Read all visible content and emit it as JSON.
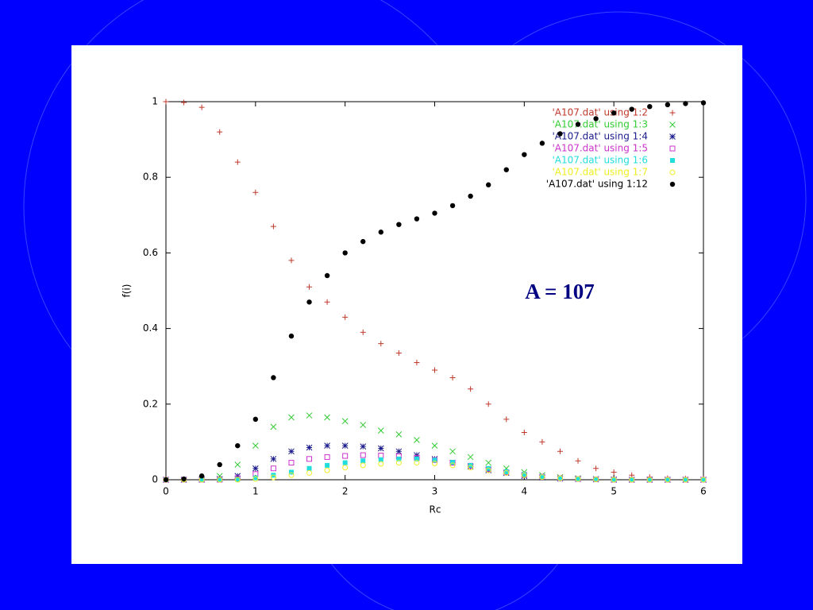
{
  "chart_data": {
    "type": "scatter",
    "annotation": "A = 107",
    "x_label": "Rc",
    "y_label": "f(i)",
    "xlim": [
      0,
      6
    ],
    "ylim": [
      0,
      1
    ],
    "xticks": [
      0,
      1,
      2,
      3,
      4,
      5,
      6
    ],
    "yticks": [
      0,
      0.2,
      0.4,
      0.6,
      0.8,
      1
    ],
    "legend": "top-right",
    "x": [
      0,
      0.2,
      0.4,
      0.6,
      0.8,
      1,
      1.2,
      1.4,
      1.6,
      1.8,
      2,
      2.2,
      2.4,
      2.6,
      2.8,
      3,
      3.2,
      3.4,
      3.6,
      3.8,
      4,
      4.2,
      4.4,
      4.6,
      4.8,
      5,
      5.2,
      5.4,
      5.6,
      5.8,
      6
    ],
    "series": [
      {
        "name": "'A107.dat' using 1:2",
        "color": "#c0392b",
        "marker": "plus",
        "values": [
          1,
          0.998,
          0.985,
          0.92,
          0.84,
          0.76,
          0.67,
          0.58,
          0.51,
          0.47,
          0.43,
          0.39,
          0.36,
          0.335,
          0.31,
          0.29,
          0.27,
          0.24,
          0.2,
          0.16,
          0.125,
          0.1,
          0.075,
          0.05,
          0.03,
          0.02,
          0.012,
          0.007,
          0.004,
          0.003,
          0.002
        ]
      },
      {
        "name": "'A107.dat' using 1:3",
        "color": "#33cc33",
        "marker": "cross",
        "values": [
          0,
          0,
          0.002,
          0.01,
          0.04,
          0.09,
          0.14,
          0.165,
          0.17,
          0.165,
          0.155,
          0.145,
          0.13,
          0.12,
          0.105,
          0.09,
          0.075,
          0.06,
          0.045,
          0.03,
          0.02,
          0.012,
          0.007,
          0.004,
          0.002,
          0.001,
          0,
          0,
          0,
          0,
          0
        ]
      },
      {
        "name": "'A107.dat' using 1:4",
        "color": "#1a1a8c",
        "marker": "star",
        "values": [
          0,
          0,
          0,
          0.002,
          0.01,
          0.03,
          0.055,
          0.075,
          0.085,
          0.09,
          0.09,
          0.088,
          0.083,
          0.075,
          0.065,
          0.055,
          0.045,
          0.035,
          0.025,
          0.018,
          0.01,
          0.006,
          0.003,
          0.002,
          0.001,
          0,
          0,
          0,
          0,
          0,
          0
        ]
      },
      {
        "name": "'A107.dat' using 1:5",
        "color": "#cc33cc",
        "marker": "square",
        "values": [
          0,
          0,
          0,
          0,
          0.004,
          0.015,
          0.03,
          0.045,
          0.055,
          0.06,
          0.063,
          0.065,
          0.064,
          0.062,
          0.058,
          0.052,
          0.045,
          0.037,
          0.028,
          0.02,
          0.013,
          0.008,
          0.004,
          0.002,
          0.001,
          0,
          0,
          0,
          0,
          0,
          0
        ]
      },
      {
        "name": "'A107.dat' using 1:6",
        "color": "#22dddd",
        "marker": "filled-square",
        "values": [
          0,
          0,
          0,
          0,
          0.001,
          0.005,
          0.012,
          0.02,
          0.03,
          0.038,
          0.045,
          0.05,
          0.053,
          0.055,
          0.055,
          0.052,
          0.046,
          0.038,
          0.03,
          0.021,
          0.014,
          0.008,
          0.004,
          0.002,
          0.001,
          0,
          0,
          0,
          0,
          0,
          0
        ]
      },
      {
        "name": "'A107.dat' using 1:7",
        "color": "#eeee22",
        "marker": "circle",
        "values": [
          0,
          0,
          0,
          0,
          0,
          0.002,
          0.006,
          0.012,
          0.018,
          0.025,
          0.032,
          0.038,
          0.042,
          0.045,
          0.045,
          0.043,
          0.038,
          0.032,
          0.025,
          0.018,
          0.012,
          0.007,
          0.004,
          0.002,
          0.001,
          0,
          0,
          0,
          0,
          0,
          0
        ]
      },
      {
        "name": "'A107.dat' using 1:12",
        "color": "#000000",
        "marker": "dot",
        "values": [
          0,
          0.002,
          0.01,
          0.04,
          0.09,
          0.16,
          0.27,
          0.38,
          0.47,
          0.54,
          0.6,
          0.63,
          0.655,
          0.675,
          0.69,
          0.705,
          0.725,
          0.75,
          0.78,
          0.82,
          0.86,
          0.89,
          0.915,
          0.94,
          0.955,
          0.97,
          0.98,
          0.987,
          0.992,
          0.995,
          0.997
        ]
      }
    ]
  }
}
